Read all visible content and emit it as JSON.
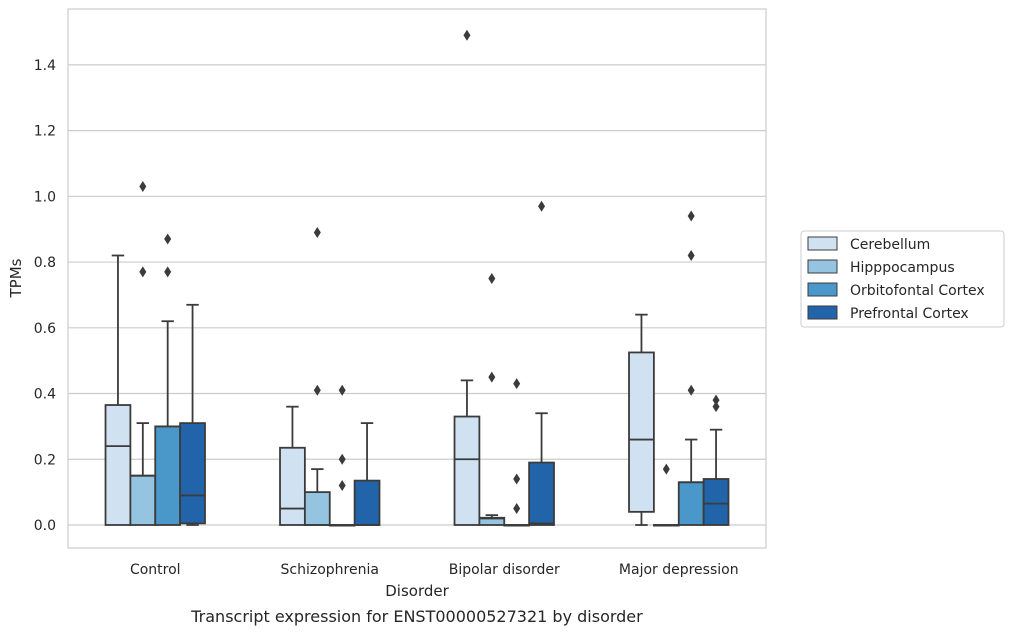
{
  "chart_data": {
    "type": "box",
    "xlabel": "Disorder",
    "ylabel": "TPMs",
    "caption": "Transcript expression for ENST00000527321 by disorder",
    "ylim": [
      -0.07,
      1.57
    ],
    "yticks": [
      "0.0",
      "0.2",
      "0.4",
      "0.6",
      "0.8",
      "1.0",
      "1.2",
      "1.4"
    ],
    "categories": [
      "Control",
      "Schizophrenia",
      "Bipolar disorder",
      "Major depression"
    ],
    "grid": "horizontal",
    "legend_position": "right",
    "series": [
      {
        "name": "Cerebellum",
        "color": "#d0e1f2",
        "boxes": [
          {
            "q1": 0.0,
            "median": 0.24,
            "q3": 0.365,
            "whisker_low": 0.0,
            "whisker_high": 0.82,
            "outliers": []
          },
          {
            "q1": 0.0,
            "median": 0.05,
            "q3": 0.235,
            "whisker_low": 0.0,
            "whisker_high": 0.36,
            "outliers": []
          },
          {
            "q1": 0.0,
            "median": 0.2,
            "q3": 0.33,
            "whisker_low": 0.0,
            "whisker_high": 0.44,
            "outliers": [
              1.49
            ]
          },
          {
            "q1": 0.04,
            "median": 0.26,
            "q3": 0.525,
            "whisker_low": 0.0,
            "whisker_high": 0.64,
            "outliers": []
          }
        ]
      },
      {
        "name": "Hipppocampus",
        "color": "#94c4df",
        "boxes": [
          {
            "q1": 0.0,
            "median": 0.15,
            "q3": 0.15,
            "whisker_low": 0.0,
            "whisker_high": 0.31,
            "outliers": [
              1.03,
              0.77
            ]
          },
          {
            "q1": 0.0,
            "median": 0.0,
            "q3": 0.1,
            "whisker_low": 0.0,
            "whisker_high": 0.17,
            "outliers": [
              0.89,
              0.41
            ]
          },
          {
            "q1": 0.0,
            "median": 0.02,
            "q3": 0.022,
            "whisker_low": 0.0,
            "whisker_high": 0.03,
            "outliers": [
              0.75,
              0.45
            ]
          },
          {
            "q1": 0.0,
            "median": 0.0,
            "q3": 0.0,
            "whisker_low": 0.0,
            "whisker_high": 0.0,
            "outliers": [
              0.17
            ]
          }
        ]
      },
      {
        "name": "Orbitofontal Cortex",
        "color": "#4a98c9",
        "boxes": [
          {
            "q1": 0.0,
            "median": 0.3,
            "q3": 0.3,
            "whisker_low": 0.0,
            "whisker_high": 0.62,
            "outliers": [
              0.87,
              0.77
            ]
          },
          {
            "q1": 0.0,
            "median": 0.0,
            "q3": 0.0,
            "whisker_low": 0.0,
            "whisker_high": 0.0,
            "outliers": [
              0.41,
              0.2,
              0.12
            ]
          },
          {
            "q1": 0.0,
            "median": 0.0,
            "q3": 0.0,
            "whisker_low": 0.0,
            "whisker_high": 0.0,
            "outliers": [
              0.43,
              0.14,
              0.05
            ]
          },
          {
            "q1": 0.0,
            "median": 0.13,
            "q3": 0.13,
            "whisker_low": 0.0,
            "whisker_high": 0.26,
            "outliers": [
              0.94,
              0.82,
              0.41
            ]
          }
        ]
      },
      {
        "name": "Prefrontal Cortex",
        "color": "#2264a9",
        "boxes": [
          {
            "q1": 0.005,
            "median": 0.09,
            "q3": 0.31,
            "whisker_low": 0.0,
            "whisker_high": 0.67,
            "outliers": []
          },
          {
            "q1": 0.0,
            "median": 0.0,
            "q3": 0.135,
            "whisker_low": 0.0,
            "whisker_high": 0.31,
            "outliers": []
          },
          {
            "q1": 0.0,
            "median": 0.005,
            "q3": 0.19,
            "whisker_low": 0.0,
            "whisker_high": 0.34,
            "outliers": [
              0.97
            ]
          },
          {
            "q1": 0.0,
            "median": 0.065,
            "q3": 0.14,
            "whisker_low": 0.0,
            "whisker_high": 0.29,
            "outliers": [
              0.38,
              0.36
            ]
          }
        ]
      }
    ]
  }
}
